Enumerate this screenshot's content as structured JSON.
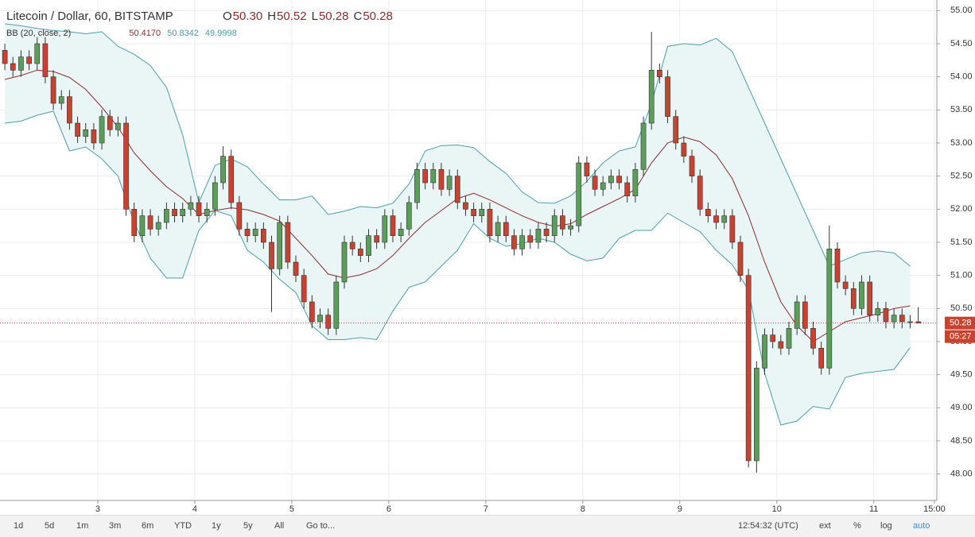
{
  "chart_data": {
    "type": "candlestick",
    "title": "Litecoin / Dollar, 60, BITSTAMP",
    "ohlc": [
      [
        "O",
        "50.30"
      ],
      [
        "H",
        "50.52"
      ],
      [
        "L",
        "50.28"
      ],
      [
        "C",
        "50.28"
      ]
    ],
    "indicator": {
      "name": "BB (20, close, 2)",
      "values": [
        "50.4170",
        "50.8342",
        "49.9998"
      ]
    },
    "up_color": "#5b9e5a",
    "down_color": "#c9412f",
    "wick_color": "#333333",
    "x": [
      -23,
      -21,
      -19,
      -17,
      -15,
      -13,
      -11,
      -9,
      -7,
      -5,
      -3,
      -1,
      1,
      3,
      5,
      7,
      9,
      11,
      13,
      15,
      17,
      19,
      21,
      23,
      25,
      27,
      29,
      31,
      33,
      35,
      37,
      39,
      41,
      43,
      45,
      47,
      49,
      51,
      53,
      55,
      57,
      59,
      61,
      63,
      65,
      67,
      69,
      71,
      73,
      75,
      77,
      79,
      81,
      83,
      85,
      87,
      89,
      91,
      93,
      95,
      97,
      99,
      101,
      103,
      105,
      107,
      109,
      111,
      113,
      115,
      117,
      119,
      121,
      123,
      125,
      127,
      129,
      131,
      133,
      135,
      137,
      139,
      141,
      143,
      145,
      147,
      149,
      151,
      153,
      155,
      157,
      159,
      161,
      163,
      165,
      167,
      169,
      171,
      173,
      175,
      177,
      179,
      181,
      183,
      185,
      187,
      189,
      191,
      193,
      195,
      197,
      199,
      201,
      203
    ],
    "open": [
      54.4,
      54.2,
      54.1,
      54.3,
      54.2,
      54.5,
      54.0,
      53.6,
      53.7,
      53.3,
      53.1,
      53.2,
      53.0,
      53.4,
      53.2,
      53.3,
      52.0,
      51.6,
      51.9,
      51.7,
      51.8,
      52.0,
      51.9,
      52.0,
      52.1,
      51.9,
      52.0,
      52.4,
      52.8,
      52.1,
      51.7,
      51.6,
      51.7,
      51.5,
      51.1,
      51.8,
      51.2,
      51.0,
      50.6,
      50.3,
      50.4,
      50.2,
      50.9,
      51.5,
      51.4,
      51.3,
      51.6,
      51.5,
      51.9,
      51.6,
      51.7,
      52.1,
      52.6,
      52.4,
      52.6,
      52.3,
      52.5,
      52.1,
      52.0,
      51.9,
      52.0,
      51.6,
      51.8,
      51.6,
      51.4,
      51.6,
      51.5,
      51.7,
      51.6,
      51.9,
      51.7,
      51.75,
      52.7,
      52.5,
      52.3,
      52.4,
      52.5,
      52.4,
      52.2,
      52.6,
      53.3,
      54.1,
      54.0,
      53.4,
      53.0,
      52.8,
      52.5,
      52.0,
      51.9,
      51.8,
      51.9,
      51.5,
      51.0,
      48.2,
      49.6,
      50.1,
      50.0,
      49.9,
      50.2,
      50.6,
      50.2,
      49.9,
      49.6,
      51.4,
      50.9,
      50.8,
      50.5,
      50.9,
      50.4,
      50.5,
      50.3,
      50.4,
      50.3,
      50.3
    ],
    "high": [
      54.5,
      54.3,
      54.4,
      54.4,
      54.6,
      54.6,
      54.1,
      53.8,
      53.8,
      53.4,
      53.3,
      53.3,
      53.5,
      53.5,
      53.4,
      53.4,
      52.1,
      52.0,
      52.0,
      51.9,
      52.1,
      52.1,
      52.1,
      52.2,
      52.2,
      52.1,
      52.5,
      52.95,
      52.9,
      52.2,
      51.8,
      51.8,
      51.8,
      51.6,
      51.9,
      51.9,
      51.3,
      51.1,
      50.7,
      50.5,
      50.5,
      51.0,
      51.6,
      51.6,
      51.5,
      51.7,
      51.7,
      52.0,
      52.0,
      51.8,
      52.2,
      52.7,
      52.7,
      52.7,
      52.7,
      52.6,
      52.6,
      52.2,
      52.1,
      52.1,
      52.1,
      51.9,
      51.9,
      51.7,
      51.7,
      51.7,
      51.8,
      51.8,
      52.0,
      52.0,
      51.85,
      52.8,
      52.8,
      52.6,
      52.5,
      52.6,
      52.6,
      52.5,
      52.7,
      53.4,
      54.68,
      54.2,
      54.1,
      53.5,
      53.1,
      52.9,
      52.6,
      52.1,
      52.0,
      52.0,
      52.0,
      51.6,
      51.1,
      49.7,
      50.2,
      50.2,
      50.1,
      50.3,
      50.7,
      50.7,
      50.3,
      50.0,
      51.75,
      51.5,
      51.0,
      50.9,
      51.0,
      51.0,
      50.6,
      50.6,
      50.5,
      50.5,
      50.4,
      50.52
    ],
    "low": [
      54.1,
      54.0,
      54.0,
      54.1,
      54.1,
      53.9,
      53.5,
      53.5,
      53.2,
      53.0,
      53.0,
      52.9,
      52.9,
      53.1,
      53.1,
      51.9,
      51.5,
      51.5,
      51.6,
      51.6,
      51.7,
      51.8,
      51.8,
      51.9,
      51.8,
      51.8,
      51.9,
      52.3,
      52.0,
      51.6,
      51.5,
      51.5,
      51.4,
      50.45,
      51.0,
      51.1,
      50.9,
      50.5,
      50.2,
      50.2,
      50.1,
      50.1,
      50.8,
      51.3,
      51.2,
      51.2,
      51.4,
      51.4,
      51.5,
      51.5,
      51.6,
      52.0,
      52.3,
      52.3,
      52.2,
      52.2,
      52.0,
      51.9,
      51.8,
      51.8,
      51.5,
      51.5,
      51.5,
      51.3,
      51.3,
      51.4,
      51.4,
      51.5,
      51.5,
      51.6,
      51.6,
      51.65,
      52.4,
      52.2,
      52.2,
      52.3,
      52.3,
      52.1,
      52.1,
      52.5,
      53.2,
      53.9,
      53.3,
      52.9,
      52.7,
      52.4,
      51.9,
      51.8,
      51.7,
      51.7,
      51.4,
      50.9,
      48.1,
      48.02,
      49.5,
      49.9,
      49.8,
      49.8,
      50.1,
      50.1,
      49.8,
      49.5,
      49.5,
      50.8,
      50.7,
      50.4,
      50.4,
      50.3,
      50.3,
      50.2,
      50.2,
      50.2,
      50.2,
      50.28
    ],
    "close": [
      54.2,
      54.1,
      54.3,
      54.2,
      54.5,
      54.0,
      53.6,
      53.7,
      53.3,
      53.1,
      53.2,
      53.0,
      53.4,
      53.2,
      53.3,
      52.0,
      51.6,
      51.9,
      51.7,
      51.8,
      52.0,
      51.9,
      52.0,
      52.1,
      51.9,
      52.0,
      52.4,
      52.8,
      52.1,
      51.7,
      51.6,
      51.7,
      51.5,
      51.1,
      51.8,
      51.2,
      51.0,
      50.6,
      50.3,
      50.4,
      50.2,
      50.9,
      51.5,
      51.4,
      51.3,
      51.6,
      51.5,
      51.9,
      51.6,
      51.7,
      52.1,
      52.6,
      52.4,
      52.6,
      52.3,
      52.5,
      52.1,
      52.0,
      51.9,
      52.0,
      51.6,
      51.8,
      51.6,
      51.4,
      51.6,
      51.5,
      51.7,
      51.6,
      51.9,
      51.7,
      51.75,
      52.7,
      52.5,
      52.3,
      52.4,
      52.5,
      52.4,
      52.2,
      52.6,
      53.3,
      54.1,
      54.0,
      53.4,
      53.0,
      52.8,
      52.5,
      52.0,
      51.9,
      51.8,
      51.9,
      51.5,
      51.0,
      48.2,
      49.6,
      50.1,
      50.0,
      49.9,
      50.2,
      50.6,
      50.2,
      49.9,
      49.6,
      51.4,
      50.9,
      50.8,
      50.5,
      50.9,
      50.4,
      50.5,
      50.3,
      50.4,
      50.3,
      50.3,
      50.28
    ],
    "bands": {
      "band_color": "#4a9fac",
      "basis_color": "#8e2a2a",
      "fill_color": "#eaf6f6",
      "x": [
        -23,
        -19,
        -15,
        -11,
        -7,
        -3,
        1,
        5,
        9,
        13,
        17,
        21,
        25,
        29,
        33,
        37,
        41,
        45,
        49,
        53,
        57,
        61,
        65,
        69,
        73,
        77,
        81,
        85,
        89,
        93,
        97,
        101,
        105,
        109,
        113,
        117,
        121,
        125,
        129,
        133,
        137,
        141,
        145,
        149,
        153,
        157,
        161,
        165,
        169,
        173,
        177,
        181,
        185,
        189,
        193,
        197,
        201
      ],
      "upper": [
        54.8,
        54.77,
        54.73,
        54.7,
        54.68,
        54.65,
        54.68,
        54.46,
        54.34,
        54.17,
        53.84,
        53.12,
        52.1,
        52.66,
        52.76,
        52.64,
        52.38,
        52.14,
        52.14,
        52.2,
        51.92,
        51.97,
        52.04,
        52.02,
        52.09,
        52.38,
        52.88,
        52.96,
        52.97,
        52.93,
        52.72,
        52.54,
        52.26,
        52.1,
        52.09,
        52.2,
        52.42,
        52.7,
        52.88,
        52.94,
        53.6,
        54.46,
        54.5,
        54.48,
        54.58,
        54.38,
        53.84,
        53.3,
        52.76,
        52.22,
        51.68,
        51.14,
        51.24,
        51.34,
        51.37,
        51.34,
        51.14
      ],
      "basis": [
        53.96,
        54.02,
        54.1,
        54.08,
        53.99,
        53.81,
        53.54,
        53.24,
        52.85,
        52.58,
        52.34,
        52.16,
        51.92,
        51.98,
        52.02,
        51.99,
        51.92,
        51.82,
        51.56,
        51.3,
        51.02,
        50.96,
        51.01,
        51.1,
        51.3,
        51.56,
        51.8,
        51.98,
        52.16,
        52.24,
        52.14,
        52.02,
        51.9,
        51.8,
        51.74,
        51.78,
        51.92,
        52.04,
        52.16,
        52.3,
        52.7,
        53.0,
        53.09,
        53.02,
        52.82,
        52.46,
        51.9,
        51.2,
        50.6,
        50.24,
        50.0,
        50.15,
        50.3,
        50.36,
        50.42,
        50.5,
        50.54
      ],
      "lower": [
        53.3,
        53.33,
        53.42,
        53.48,
        52.88,
        52.94,
        52.76,
        52.5,
        51.8,
        51.26,
        50.96,
        50.96,
        51.68,
        51.98,
        51.9,
        51.38,
        51.2,
        50.94,
        50.74,
        50.24,
        50.03,
        50.03,
        50.06,
        50.03,
        50.46,
        50.82,
        50.9,
        51.14,
        51.38,
        51.78,
        51.56,
        51.44,
        51.48,
        51.56,
        51.5,
        51.32,
        51.22,
        51.26,
        51.56,
        51.68,
        51.68,
        51.94,
        51.8,
        51.66,
        51.38,
        51.16,
        50.78,
        49.52,
        48.74,
        48.8,
        49.02,
        48.98,
        49.46,
        49.52,
        49.55,
        49.58,
        49.91
      ]
    },
    "last_price": {
      "value": 50.28,
      "label": "50.28",
      "countdown": "05:27",
      "color": "#c9412f"
    },
    "ylim": [
      47.6,
      55.16
    ],
    "yticks": [
      {
        "value": 48,
        "label": "48.00"
      },
      {
        "value": 48.5,
        "label": "48.50"
      },
      {
        "value": 49,
        "label": "49.00"
      },
      {
        "value": 49.5,
        "label": "49.50"
      },
      {
        "value": 50,
        "label": "50.00"
      },
      {
        "value": 50.5,
        "label": "50.50"
      },
      {
        "value": 51,
        "label": "51.00"
      },
      {
        "value": 51.5,
        "label": "51.50"
      },
      {
        "value": 52,
        "label": "52.00"
      },
      {
        "value": 52.5,
        "label": "52.50"
      },
      {
        "value": 53,
        "label": "53.00"
      },
      {
        "value": 53.5,
        "label": "53.50"
      },
      {
        "value": 54,
        "label": "54.00"
      },
      {
        "value": 54.5,
        "label": "54.50"
      },
      {
        "value": 55,
        "label": "55.00"
      }
    ],
    "xlim": [
      -24.2,
      207.6
    ],
    "xticks": [
      {
        "value": 0,
        "label": "3"
      },
      {
        "value": 24,
        "label": "4"
      },
      {
        "value": 48,
        "label": "5"
      },
      {
        "value": 72,
        "label": "6"
      },
      {
        "value": 96,
        "label": "7"
      },
      {
        "value": 120,
        "label": "8"
      },
      {
        "value": 144,
        "label": "9"
      },
      {
        "value": 168,
        "label": "10"
      },
      {
        "value": 192,
        "label": "11"
      },
      {
        "value": 207,
        "label": "15:00"
      }
    ],
    "grid": true,
    "toolbar": {
      "ranges": [
        "1d",
        "5d",
        "1m",
        "3m",
        "6m",
        "YTD",
        "1y",
        "5y",
        "All"
      ],
      "goto": "Go to...",
      "time": "12:54:32 (UTC)",
      "options": [
        "ext",
        "%",
        "log",
        "auto"
      ]
    }
  }
}
